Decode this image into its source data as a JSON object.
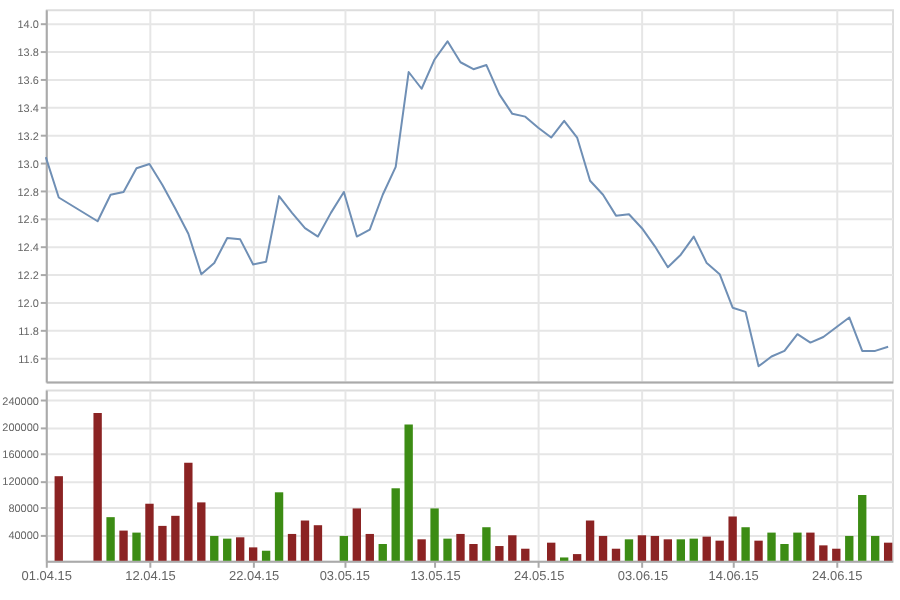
{
  "chart_data": [
    {
      "type": "line",
      "categories": [
        "01.04.15",
        null,
        null,
        null,
        null,
        null,
        null,
        null,
        "12.04.15",
        null,
        null,
        null,
        null,
        null,
        null,
        null,
        "22.04.15",
        null,
        null,
        null,
        null,
        null,
        null,
        "03.05.15",
        null,
        null,
        null,
        null,
        null,
        null,
        "13.05.15",
        null,
        null,
        null,
        null,
        null,
        null,
        null,
        "24.05.15",
        null,
        null,
        null,
        null,
        null,
        null,
        null,
        "03.06.15",
        null,
        null,
        null,
        null,
        null,
        null,
        "14.06.15",
        null,
        null,
        null,
        null,
        null,
        null,
        null,
        "24.06.15",
        null,
        null,
        null,
        null
      ],
      "series": [
        {
          "color": "#6f8fb5",
          "values": [
            13.04,
            12.75,
            null,
            null,
            12.58,
            12.77,
            12.79,
            12.96,
            12.99,
            12.84,
            12.67,
            12.49,
            12.2,
            12.28,
            12.46,
            12.45,
            12.27,
            12.29,
            12.76,
            12.64,
            12.53,
            12.47,
            12.64,
            12.79,
            12.47,
            12.52,
            12.77,
            12.97,
            13.65,
            13.53,
            13.74,
            13.87,
            13.72,
            13.67,
            13.7,
            13.49,
            13.35,
            13.33,
            13.25,
            13.18,
            13.3,
            13.18,
            12.87,
            12.77,
            12.62,
            12.63,
            12.53,
            12.4,
            12.25,
            12.34,
            12.47,
            12.28,
            12.2,
            11.96,
            11.93,
            11.54,
            11.61,
            11.65,
            11.77,
            11.71,
            11.75,
            11.82,
            11.89,
            11.65,
            11.65,
            11.68
          ]
        }
      ],
      "ylim": [
        11.43,
        14.1
      ],
      "yticks": [
        11.6,
        11.8,
        {
          "value": 12,
          "label": "12.0"
        },
        12.2,
        12.4,
        12.6,
        12.8,
        {
          "value": 13,
          "label": "13.0"
        },
        13.2,
        13.4,
        13.6,
        13.8,
        {
          "value": 14,
          "label": "14.0"
        }
      ],
      "grid": true,
      "tick_labels": "y",
      "line_style": "solid",
      "marker": "none"
    },
    {
      "type": "bar",
      "categories": [
        "01.04.15",
        null,
        null,
        null,
        null,
        null,
        null,
        null,
        "12.04.15",
        null,
        null,
        null,
        null,
        null,
        null,
        null,
        "22.04.15",
        null,
        null,
        null,
        null,
        null,
        null,
        "03.05.15",
        null,
        null,
        null,
        null,
        null,
        null,
        "13.05.15",
        null,
        null,
        null,
        null,
        null,
        null,
        null,
        "24.05.15",
        null,
        null,
        null,
        null,
        null,
        null,
        null,
        "03.06.15",
        null,
        null,
        null,
        null,
        null,
        null,
        "14.06.15",
        null,
        null,
        null,
        null,
        null,
        null,
        null,
        "24.06.15",
        null,
        null,
        null,
        null
      ],
      "values": [
        null,
        126000,
        null,
        null,
        220000,
        65000,
        45000,
        42000,
        85000,
        52000,
        67000,
        146000,
        87000,
        37000,
        33000,
        35000,
        20000,
        15000,
        102000,
        40000,
        60000,
        53000,
        null,
        37000,
        78000,
        40000,
        25000,
        108000,
        203000,
        32000,
        78000,
        33000,
        40000,
        25000,
        50000,
        22000,
        38000,
        18000,
        null,
        27000,
        5000,
        10000,
        60000,
        37000,
        18000,
        32000,
        38000,
        37000,
        32000,
        32000,
        33000,
        36000,
        30000,
        66000,
        50000,
        30000,
        42000,
        25000,
        42000,
        42000,
        23000,
        18000,
        37000,
        98000,
        37000,
        27000
      ],
      "colors": [
        "#8b2323",
        "#8b2323",
        "#8b2323",
        "#8b2323",
        "#8b2323",
        "#3c8c14",
        "#8b2323",
        "#3c8c14",
        "#8b2323",
        "#8b2323",
        "#8b2323",
        "#8b2323",
        "#8b2323",
        "#3c8c14",
        "#3c8c14",
        "#8b2323",
        "#8b2323",
        "#3c8c14",
        "#3c8c14",
        "#8b2323",
        "#8b2323",
        "#8b2323",
        "#8b2323",
        "#3c8c14",
        "#8b2323",
        "#8b2323",
        "#3c8c14",
        "#3c8c14",
        "#3c8c14",
        "#8b2323",
        "#3c8c14",
        "#3c8c14",
        "#8b2323",
        "#8b2323",
        "#3c8c14",
        "#8b2323",
        "#8b2323",
        "#8b2323",
        "#8b2323",
        "#8b2323",
        "#3c8c14",
        "#8b2323",
        "#8b2323",
        "#8b2323",
        "#8b2323",
        "#3c8c14",
        "#8b2323",
        "#8b2323",
        "#8b2323",
        "#3c8c14",
        "#3c8c14",
        "#8b2323",
        "#8b2323",
        "#8b2323",
        "#3c8c14",
        "#8b2323",
        "#3c8c14",
        "#3c8c14",
        "#3c8c14",
        "#8b2323",
        "#8b2323",
        "#8b2323",
        "#3c8c14",
        "#3c8c14",
        "#3c8c14",
        "#8b2323"
      ],
      "ylim": [
        0,
        255000
      ],
      "yticks": [
        40000,
        80000,
        120000,
        160000,
        200000,
        240000
      ],
      "grid": true
    }
  ]
}
